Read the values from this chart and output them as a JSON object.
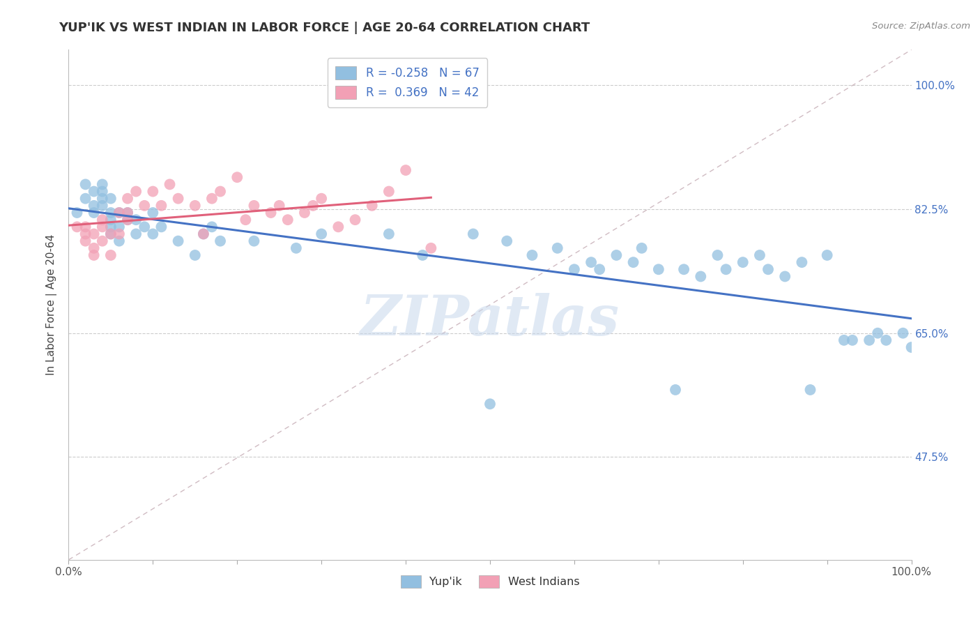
{
  "title": "YUP'IK VS WEST INDIAN IN LABOR FORCE | AGE 20-64 CORRELATION CHART",
  "source_text": "Source: ZipAtlas.com",
  "ylabel": "In Labor Force | Age 20-64",
  "xlim": [
    0.0,
    1.0
  ],
  "ylim": [
    0.33,
    1.05
  ],
  "y_tick_positions": [
    0.475,
    0.65,
    0.825,
    1.0
  ],
  "y_tick_labels": [
    "47.5%",
    "65.0%",
    "82.5%",
    "100.0%"
  ],
  "R_blue": -0.258,
  "N_blue": 67,
  "R_pink": 0.369,
  "N_pink": 42,
  "blue_color": "#92BFE0",
  "pink_color": "#F2A0B5",
  "trend_blue": "#4472C4",
  "trend_pink": "#E0607A",
  "legend_label_blue": "Yup'ik",
  "legend_label_pink": "West Indians",
  "watermark": "ZIPatlas",
  "blue_scatter_x": [
    0.01,
    0.02,
    0.02,
    0.03,
    0.03,
    0.03,
    0.04,
    0.04,
    0.04,
    0.04,
    0.05,
    0.05,
    0.05,
    0.05,
    0.05,
    0.06,
    0.06,
    0.06,
    0.07,
    0.07,
    0.08,
    0.08,
    0.09,
    0.1,
    0.1,
    0.11,
    0.13,
    0.15,
    0.16,
    0.17,
    0.18,
    0.22,
    0.27,
    0.3,
    0.38,
    0.42,
    0.48,
    0.5,
    0.52,
    0.55,
    0.58,
    0.6,
    0.62,
    0.63,
    0.65,
    0.67,
    0.68,
    0.7,
    0.72,
    0.73,
    0.75,
    0.77,
    0.78,
    0.8,
    0.82,
    0.83,
    0.85,
    0.87,
    0.88,
    0.9,
    0.92,
    0.93,
    0.95,
    0.96,
    0.97,
    0.99,
    1.0
  ],
  "blue_scatter_y": [
    0.82,
    0.84,
    0.86,
    0.83,
    0.82,
    0.85,
    0.84,
    0.85,
    0.83,
    0.86,
    0.81,
    0.82,
    0.8,
    0.84,
    0.79,
    0.82,
    0.8,
    0.78,
    0.81,
    0.82,
    0.79,
    0.81,
    0.8,
    0.79,
    0.82,
    0.8,
    0.78,
    0.76,
    0.79,
    0.8,
    0.78,
    0.78,
    0.77,
    0.79,
    0.79,
    0.76,
    0.79,
    0.55,
    0.78,
    0.76,
    0.77,
    0.74,
    0.75,
    0.74,
    0.76,
    0.75,
    0.77,
    0.74,
    0.57,
    0.74,
    0.73,
    0.76,
    0.74,
    0.75,
    0.76,
    0.74,
    0.73,
    0.75,
    0.57,
    0.76,
    0.64,
    0.64,
    0.64,
    0.65,
    0.64,
    0.65,
    0.63
  ],
  "pink_scatter_x": [
    0.01,
    0.02,
    0.02,
    0.02,
    0.03,
    0.03,
    0.03,
    0.04,
    0.04,
    0.04,
    0.05,
    0.05,
    0.06,
    0.06,
    0.07,
    0.07,
    0.07,
    0.08,
    0.09,
    0.1,
    0.11,
    0.12,
    0.13,
    0.15,
    0.16,
    0.17,
    0.18,
    0.2,
    0.21,
    0.22,
    0.24,
    0.25,
    0.26,
    0.28,
    0.29,
    0.3,
    0.32,
    0.34,
    0.36,
    0.38,
    0.4,
    0.43
  ],
  "pink_scatter_y": [
    0.8,
    0.79,
    0.8,
    0.78,
    0.77,
    0.79,
    0.76,
    0.8,
    0.78,
    0.81,
    0.79,
    0.76,
    0.82,
    0.79,
    0.81,
    0.84,
    0.82,
    0.85,
    0.83,
    0.85,
    0.83,
    0.86,
    0.84,
    0.83,
    0.79,
    0.84,
    0.85,
    0.87,
    0.81,
    0.83,
    0.82,
    0.83,
    0.81,
    0.82,
    0.83,
    0.84,
    0.8,
    0.81,
    0.83,
    0.85,
    0.88,
    0.77
  ]
}
